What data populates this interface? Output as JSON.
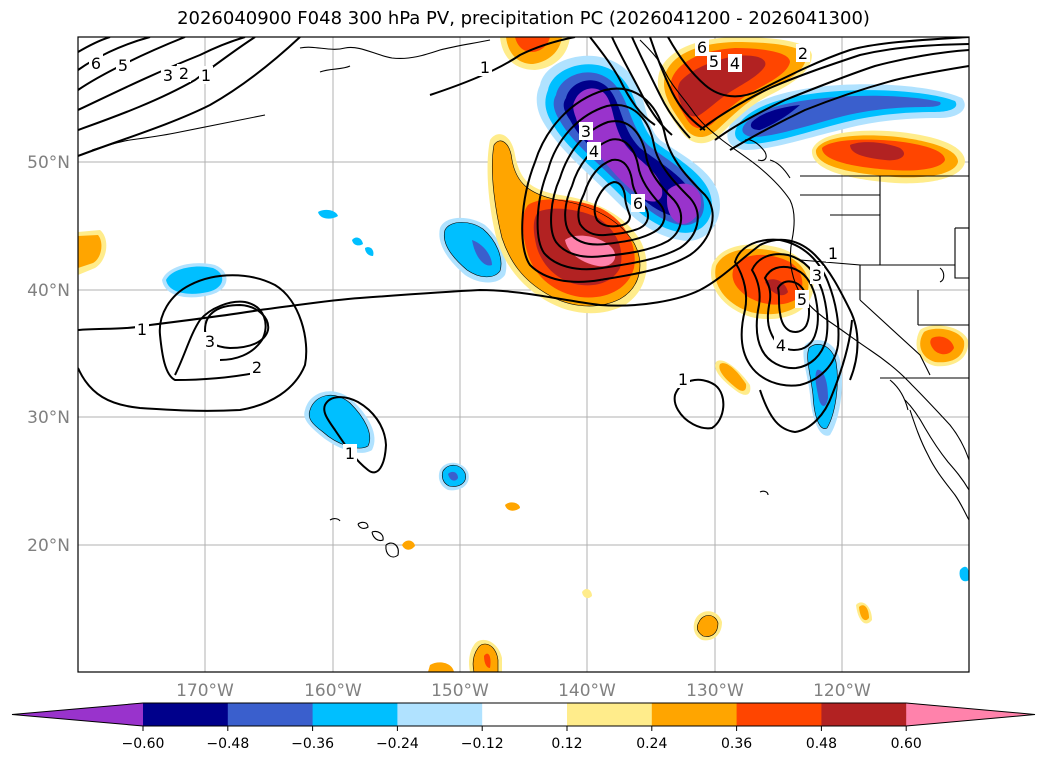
{
  "title": "2026040900 F048 300 hPa PV, precipitation PC (2026041200 - 2026041300)",
  "map": {
    "lat_labels": [
      {
        "value": 50,
        "text": "50°N"
      },
      {
        "value": 40,
        "text": "40°N"
      },
      {
        "value": 30,
        "text": "30°N"
      },
      {
        "value": 20,
        "text": "20°N"
      }
    ],
    "lon_labels": [
      {
        "value": -170,
        "text": "170°W"
      },
      {
        "value": -160,
        "text": "160°W"
      },
      {
        "value": -150,
        "text": "150°W"
      },
      {
        "value": -140,
        "text": "140°W"
      },
      {
        "value": -130,
        "text": "130°W"
      },
      {
        "value": -120,
        "text": "120°W"
      }
    ],
    "pv_contour_labels": [
      "6",
      "5",
      "3",
      "2",
      "1",
      "3",
      "4",
      "6",
      "1",
      "2",
      "3",
      "1",
      "3",
      "4",
      "5",
      "1",
      "1",
      "1",
      "6",
      "5",
      "4",
      "2"
    ]
  },
  "colorbar": {
    "levels": [
      "−0.60",
      "−0.48",
      "−0.36",
      "−0.24",
      "−0.12",
      "0.12",
      "0.24",
      "0.36",
      "0.48",
      "0.60"
    ],
    "colors": [
      "#9933cc",
      "#00008b",
      "#3a5fcd",
      "#00bfff",
      "#b0e2ff",
      "#ffffff",
      "#ffec8b",
      "#ffa500",
      "#ff4500",
      "#b22222",
      "#ff82ab"
    ]
  }
}
